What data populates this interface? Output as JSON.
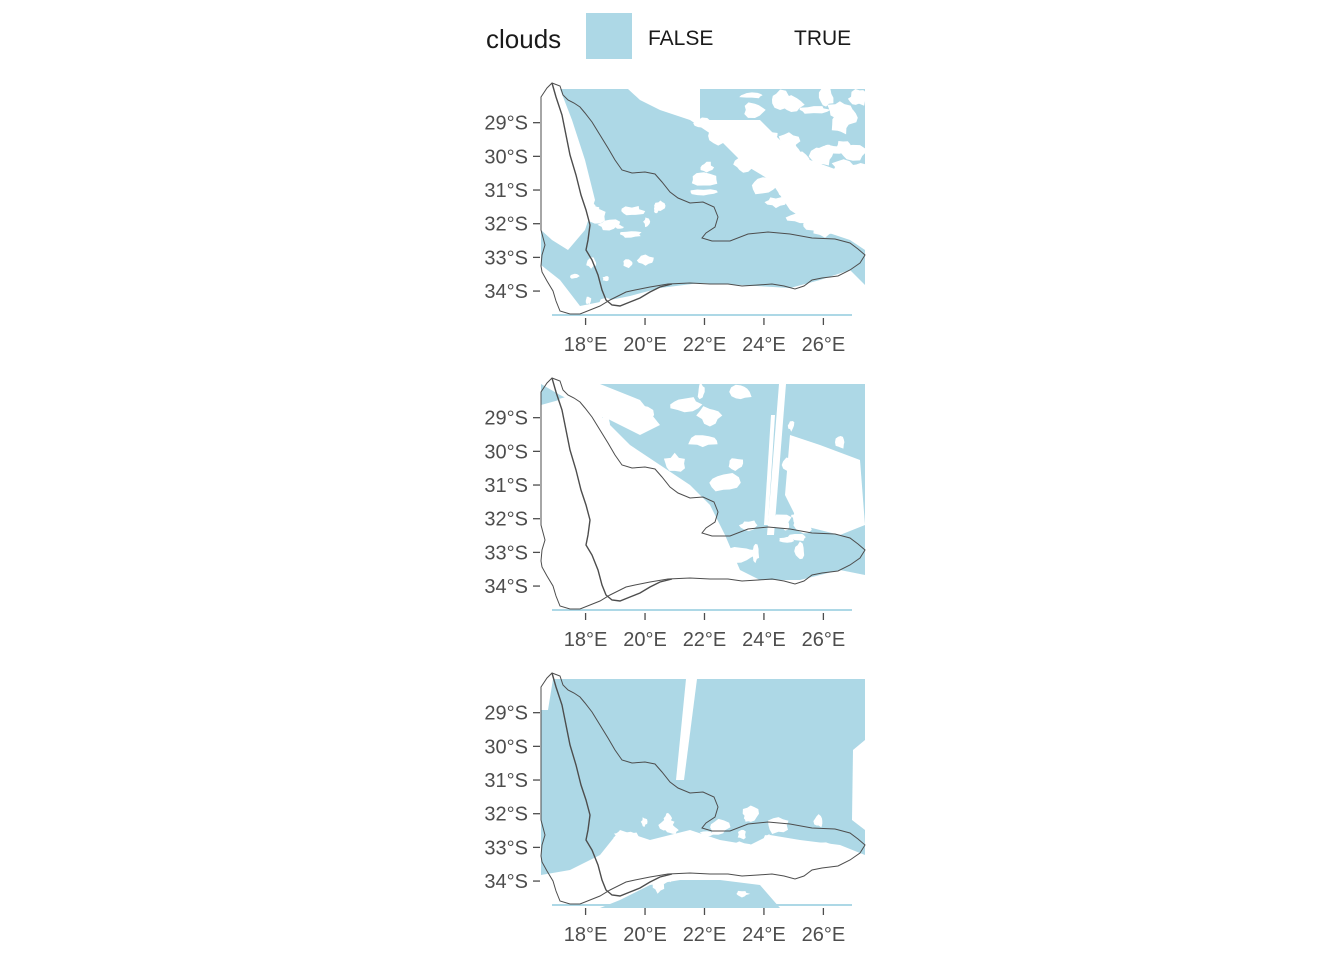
{
  "legend": {
    "title": "clouds",
    "items": [
      {
        "label": "FALSE",
        "color": "#add8e6"
      },
      {
        "label": "TRUE",
        "color": "#ffffff"
      }
    ]
  },
  "colors": {
    "clear": "#add8e6",
    "cloud": "#ffffff",
    "boundary": "#4d4d4d",
    "tick": "#4d4d4d"
  },
  "chart_data": [
    {
      "type": "heatmap",
      "title": "",
      "xlabel": "",
      "ylabel": "",
      "xlim": [
        16.5,
        27.4
      ],
      "ylim": [
        -34.8,
        -28.0
      ],
      "x_ticks": [
        "18°E",
        "20°E",
        "22°E",
        "24°E",
        "26°E"
      ],
      "y_ticks": [
        "29°S",
        "30°S",
        "31°S",
        "32°S",
        "33°S",
        "34°S"
      ],
      "fill_variable": "clouds",
      "categories": [
        "FALSE",
        "TRUE"
      ],
      "grid": false
    },
    {
      "type": "heatmap",
      "title": "",
      "xlabel": "",
      "ylabel": "",
      "xlim": [
        16.5,
        27.4
      ],
      "ylim": [
        -34.8,
        -28.0
      ],
      "x_ticks": [
        "18°E",
        "20°E",
        "22°E",
        "24°E",
        "26°E"
      ],
      "y_ticks": [
        "29°S",
        "30°S",
        "31°S",
        "32°S",
        "33°S",
        "34°S"
      ],
      "fill_variable": "clouds",
      "categories": [
        "FALSE",
        "TRUE"
      ],
      "grid": false
    },
    {
      "type": "heatmap",
      "title": "",
      "xlabel": "",
      "ylabel": "",
      "xlim": [
        16.5,
        27.4
      ],
      "ylim": [
        -34.8,
        -28.0
      ],
      "x_ticks": [
        "18°E",
        "20°E",
        "22°E",
        "24°E",
        "26°E"
      ],
      "y_ticks": [
        "29°S",
        "30°S",
        "31°S",
        "32°S",
        "33°S",
        "34°S"
      ],
      "fill_variable": "clouds",
      "categories": [
        "FALSE",
        "TRUE"
      ],
      "grid": false
    }
  ]
}
